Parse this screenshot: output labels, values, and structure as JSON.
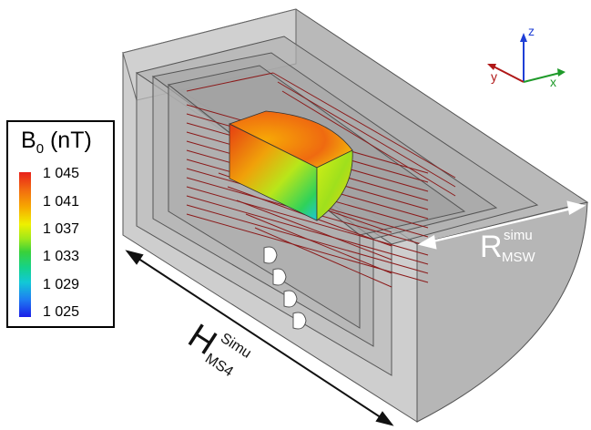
{
  "legend": {
    "title_main": "B",
    "title_sub": "0",
    "title_unit": " (nT)",
    "ticks": [
      "1 045",
      "1 041",
      "1 037",
      "1 033",
      "1 029",
      "1 025"
    ]
  },
  "axes": {
    "z": "z",
    "y": "y",
    "x": "x"
  },
  "radius_label": {
    "main": "R",
    "sup": "simu",
    "sub": "MSW"
  },
  "height_label": {
    "main": "H",
    "sup": "Simu",
    "sub": "MS4"
  },
  "colors": {
    "axis_z": "#1f3fd6",
    "axis_y": "#b01818",
    "axis_x": "#1f9a2a",
    "coil": "#8b1a1a",
    "shield_fill": "#9a9a9a",
    "shield_edge": "#555555"
  }
}
